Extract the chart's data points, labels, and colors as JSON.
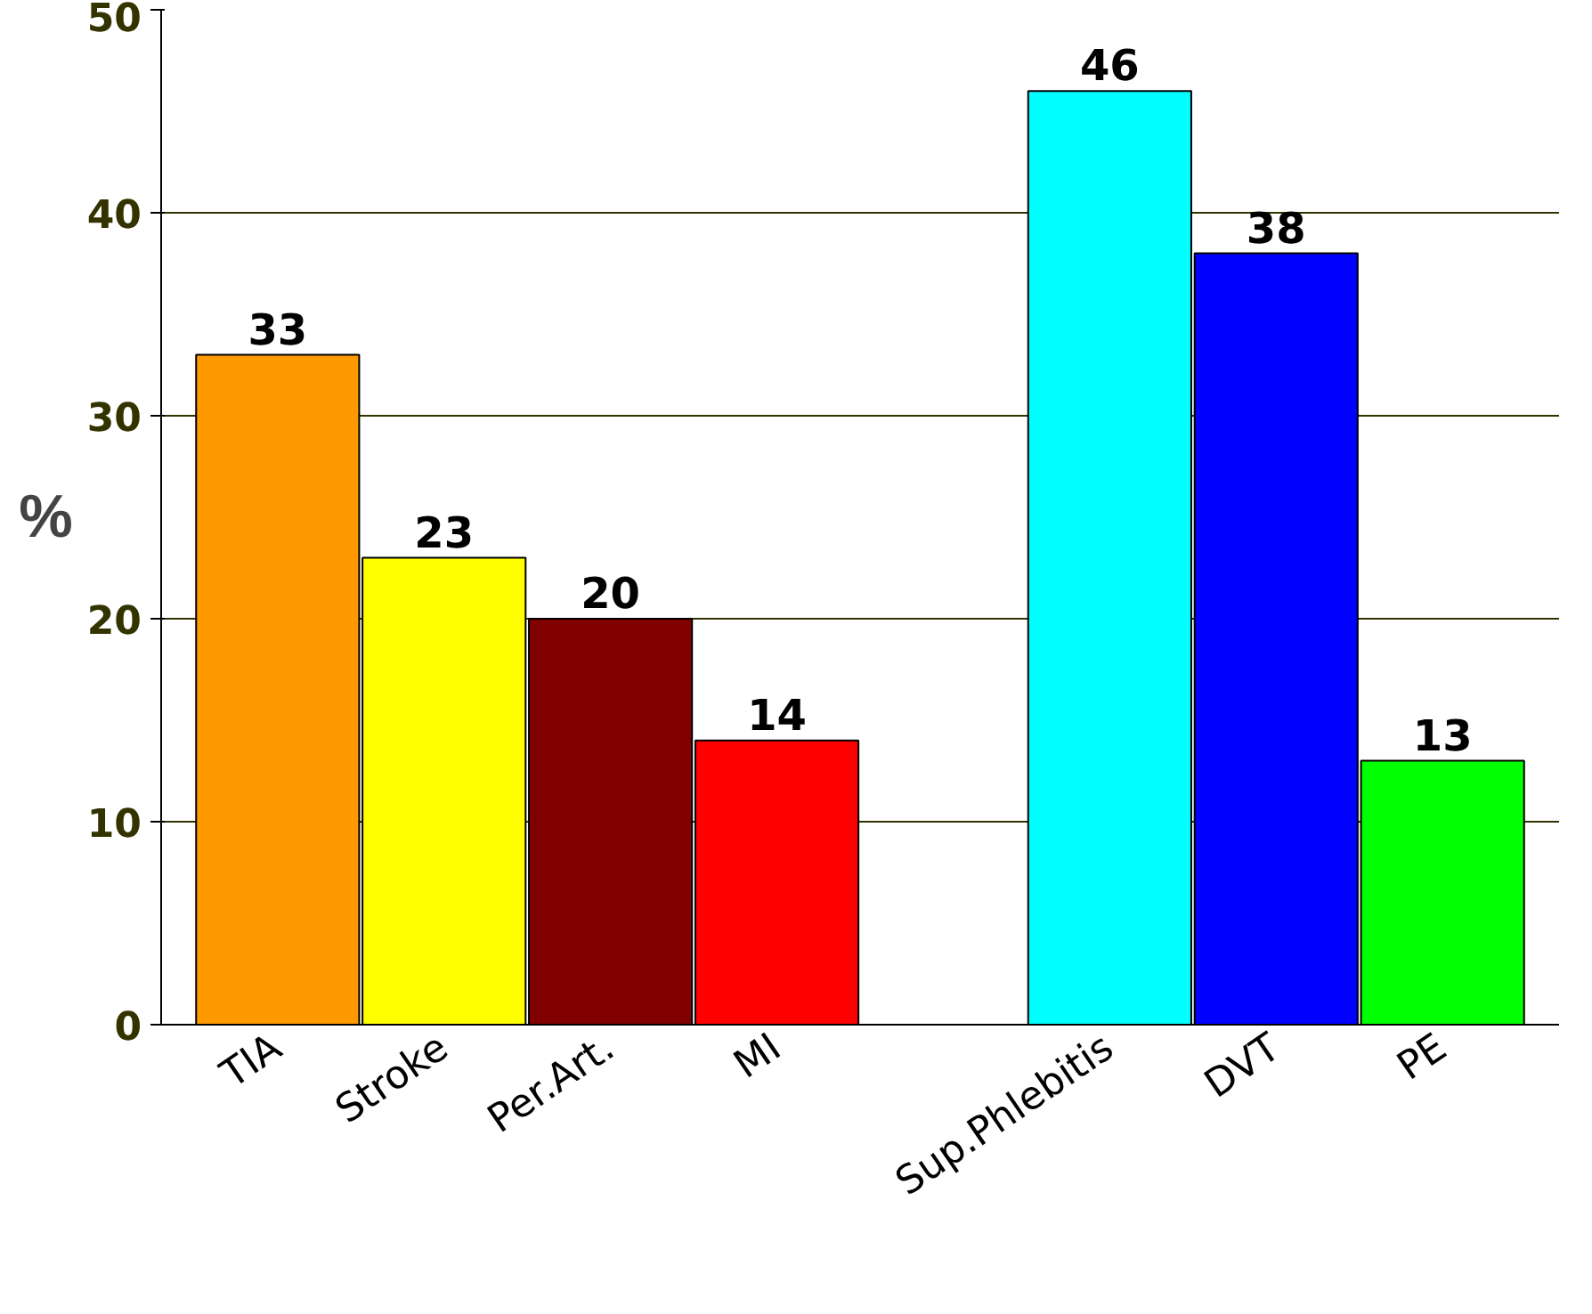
{
  "chart_data": {
    "type": "bar",
    "ylabel": "%",
    "categories": [
      "TIA",
      "Stroke",
      "Per.Art.",
      "MI",
      null,
      "Sup.Phlebitis",
      "DVT",
      "PE"
    ],
    "values": [
      33,
      23,
      20,
      14,
      null,
      46,
      38,
      13
    ],
    "colors": [
      "#ff9900",
      "#ffff00",
      "#800000",
      "#ff0000",
      "#ffffff",
      "#00ffff",
      "#0000ff",
      "#00ff00"
    ],
    "ylim": [
      0,
      50
    ],
    "yticks": [
      0,
      10,
      20,
      30,
      40,
      50
    ],
    "grid": "y",
    "data_labels": true
  }
}
